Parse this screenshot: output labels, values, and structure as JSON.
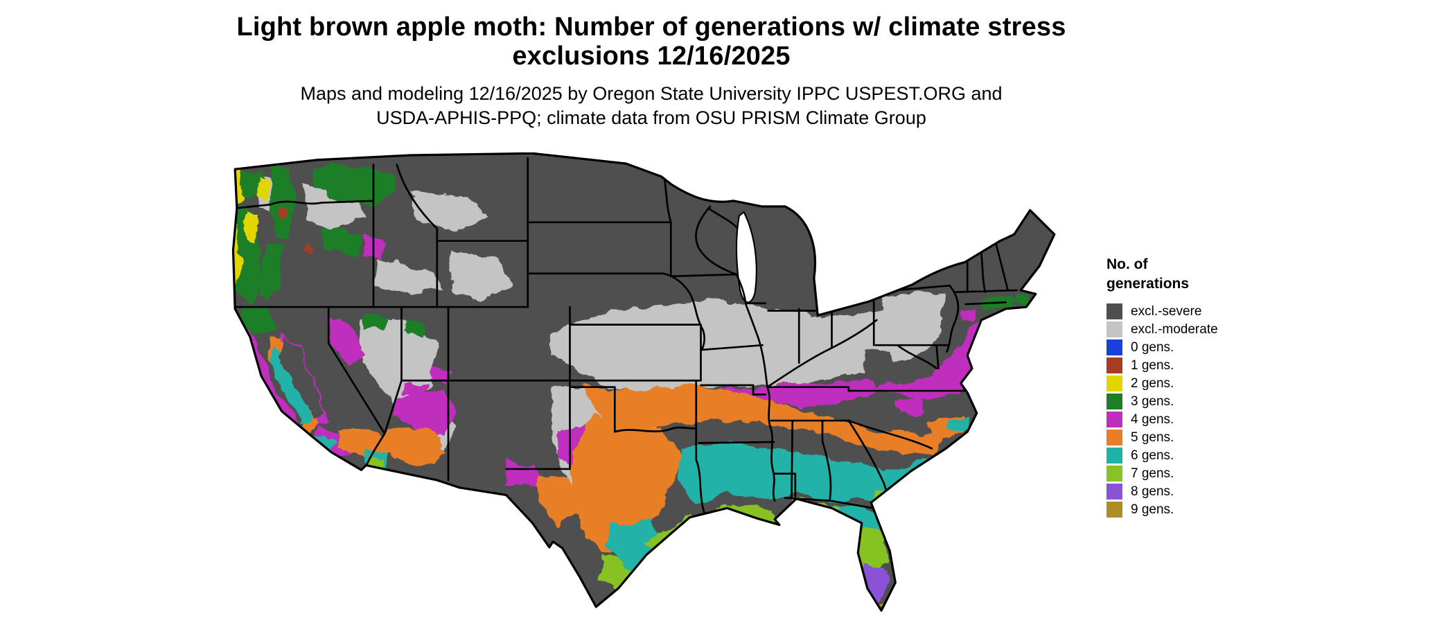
{
  "header": {
    "title_line1": "Light brown apple moth: Number of generations w/ climate stress",
    "title_line2": "exclusions 12/16/2025",
    "subtitle_line1": "Maps and modeling 12/16/2025 by Oregon State University IPPC USPEST.ORG and",
    "subtitle_line2": "USDA-APHIS-PPQ; climate data from OSU PRISM Climate Group"
  },
  "legend": {
    "title_line1": "No. of",
    "title_line2": "generations",
    "items": [
      {
        "key": "severe",
        "label": "excl.-severe",
        "color": "#4f4f4f"
      },
      {
        "key": "moderate",
        "label": "excl.-moderate",
        "color": "#c4c4c4"
      },
      {
        "key": "g0",
        "label": "0 gens.",
        "color": "#1b41dd"
      },
      {
        "key": "g1",
        "label": "1 gens.",
        "color": "#a63c22"
      },
      {
        "key": "g2",
        "label": "2 gens.",
        "color": "#e3d600"
      },
      {
        "key": "g3",
        "label": "3 gens.",
        "color": "#1e7e26"
      },
      {
        "key": "g4",
        "label": "4 gens.",
        "color": "#bf2dbd"
      },
      {
        "key": "g5",
        "label": "5 gens.",
        "color": "#e87e26"
      },
      {
        "key": "g6",
        "label": "6 gens.",
        "color": "#21b2a7"
      },
      {
        "key": "g7",
        "label": "7 gens.",
        "color": "#86c323"
      },
      {
        "key": "g8",
        "label": "8 gens.",
        "color": "#8a53d7"
      },
      {
        "key": "g9",
        "label": "9 gens.",
        "color": "#ad8c25"
      }
    ]
  },
  "map": {
    "area": "contiguous United States"
  }
}
